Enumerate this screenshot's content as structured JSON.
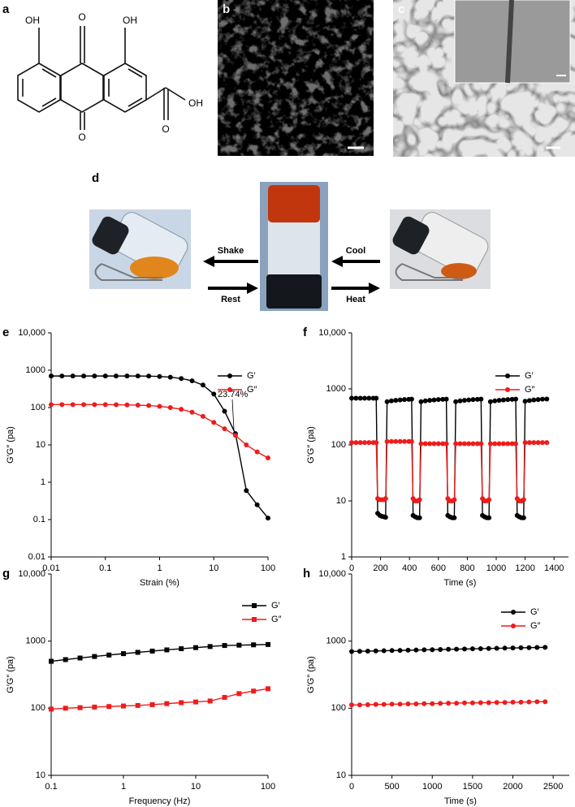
{
  "panels": {
    "a": {
      "label": "a",
      "atoms": [
        "OH",
        "O",
        "OH",
        "O",
        "O",
        "OH"
      ]
    },
    "b": {
      "label": "b"
    },
    "c": {
      "label": "c"
    },
    "d": {
      "label": "d",
      "actions": [
        "Shake",
        "Rest",
        "Cool",
        "Heat"
      ]
    }
  },
  "chart_data": [
    {
      "type": "line",
      "label": "e",
      "xlabel": "Strain (%)",
      "ylabel": "G′G″ (pa)",
      "xscale": "log",
      "yscale": "log",
      "marker": "circle",
      "legend": "upper right",
      "xlim": [
        0.01,
        100
      ],
      "ylim": [
        0.01,
        10000
      ],
      "xticks": [
        0.01,
        0.1,
        1,
        10,
        100
      ],
      "yticks": [
        0.01,
        0.1,
        1,
        10,
        100,
        1000,
        {
          "value": 10000,
          "label": "10,000"
        }
      ],
      "annotations": [
        "23.74%"
      ],
      "x": [
        0.01,
        0.0158,
        0.0251,
        0.0398,
        0.0631,
        0.1,
        0.158,
        0.251,
        0.398,
        0.631,
        1,
        1.58,
        2.51,
        3.98,
        6.31,
        10,
        15.8,
        25.1,
        39.8,
        63.1,
        100
      ],
      "series": [
        {
          "name": "G′",
          "color": "#000000",
          "values": [
            700,
            700,
            700,
            700,
            700,
            700,
            700,
            700,
            700,
            695,
            680,
            650,
            600,
            520,
            400,
            230,
            80,
            20,
            0.6,
            0.25,
            0.11
          ]
        },
        {
          "name": "G″",
          "color": "#ee1c1c",
          "values": [
            120,
            120,
            120,
            120,
            120,
            120,
            119,
            118,
            116,
            113,
            108,
            100,
            90,
            75,
            58,
            40,
            27,
            18,
            10,
            6.5,
            4.5
          ]
        }
      ]
    },
    {
      "type": "line",
      "label": "f",
      "xlabel": "Time (s)",
      "ylabel": "G′G″ (pa)",
      "xscale": "linear",
      "yscale": "log",
      "marker": "circle",
      "legend": "upper right",
      "xlim": [
        0,
        1500
      ],
      "ylim": [
        1,
        10000
      ],
      "xticks": [
        0,
        200,
        400,
        600,
        800,
        1000,
        1200,
        1400
      ],
      "yticks": [
        1,
        10,
        100,
        1000,
        {
          "value": 10000,
          "label": "10,000"
        }
      ],
      "x": [
        0,
        30,
        60,
        90,
        120,
        150,
        170,
        180,
        195,
        210,
        225,
        235,
        245,
        275,
        305,
        335,
        365,
        395,
        415,
        425,
        440,
        455,
        470,
        480,
        510,
        540,
        570,
        600,
        630,
        655,
        665,
        680,
        695,
        710,
        720,
        750,
        780,
        810,
        840,
        870,
        895,
        905,
        920,
        935,
        950,
        960,
        990,
        1020,
        1050,
        1080,
        1110,
        1135,
        1145,
        1160,
        1175,
        1190,
        1200,
        1230,
        1260,
        1290,
        1320,
        1350
      ],
      "series": [
        {
          "name": "G′",
          "color": "#000000",
          "values": [
            680,
            680,
            680,
            680,
            680,
            680,
            680,
            6,
            5.5,
            5.3,
            5.2,
            5.1,
            590,
            610,
            625,
            635,
            645,
            650,
            655,
            5.5,
            5.2,
            5,
            5,
            590,
            610,
            625,
            635,
            645,
            650,
            655,
            5.5,
            5.2,
            5,
            5,
            590,
            610,
            625,
            635,
            645,
            650,
            655,
            5.5,
            5.2,
            5,
            5,
            590,
            610,
            625,
            635,
            645,
            650,
            655,
            5.5,
            5.2,
            5,
            5,
            600,
            620,
            635,
            645,
            655,
            660
          ]
        },
        {
          "name": "G″",
          "color": "#ee1c1c",
          "values": [
            110,
            110,
            110,
            110,
            110,
            110,
            110,
            11,
            10.5,
            10.5,
            10.5,
            11,
            115,
            115,
            115,
            115,
            115,
            115,
            115,
            11,
            10,
            10,
            10.5,
            105,
            105,
            105,
            105,
            105,
            105,
            105,
            11,
            10,
            10,
            10.5,
            105,
            105,
            105,
            105,
            105,
            105,
            105,
            11,
            10,
            10,
            10.5,
            105,
            105,
            105,
            105,
            105,
            105,
            105,
            11,
            10,
            10,
            10.5,
            110,
            110,
            110,
            110,
            110,
            110
          ]
        }
      ]
    },
    {
      "type": "line",
      "label": "g",
      "xlabel": "Frequency (Hz)",
      "ylabel": "G′G″ (pa)",
      "xscale": "log",
      "yscale": "log",
      "marker": "square",
      "legend": "upper right",
      "xlim": [
        0.1,
        100
      ],
      "ylim": [
        10,
        10000
      ],
      "xticks": [
        0.1,
        1,
        10,
        100
      ],
      "yticks": [
        10,
        100,
        1000,
        {
          "value": 10000,
          "label": "10,000"
        }
      ],
      "x": [
        0.1,
        0.158,
        0.251,
        0.398,
        0.631,
        1,
        1.58,
        2.51,
        3.98,
        6.31,
        10,
        15.8,
        25.1,
        39.8,
        63.1,
        100
      ],
      "series": [
        {
          "name": "G′",
          "color": "#000000",
          "values": [
            500,
            530,
            560,
            590,
            620,
            650,
            680,
            710,
            740,
            770,
            800,
            830,
            860,
            870,
            880,
            890
          ]
        },
        {
          "name": "G″",
          "color": "#ee1c1c",
          "values": [
            97,
            100,
            102,
            104,
            106,
            108,
            110,
            113,
            117,
            121,
            124,
            128,
            145,
            165,
            180,
            195
          ]
        }
      ]
    },
    {
      "type": "line",
      "label": "h",
      "xlabel": "Time (s)",
      "ylabel": "G′G″ (pa)",
      "xscale": "linear",
      "yscale": "log",
      "marker": "circle",
      "legend": "upper right",
      "xlim": [
        0,
        2700
      ],
      "ylim": [
        10,
        10000
      ],
      "xticks": [
        0,
        500,
        1000,
        1500,
        2000,
        2500
      ],
      "yticks": [
        10,
        100,
        1000,
        {
          "value": 10000,
          "label": "10,000"
        }
      ],
      "x": [
        0,
        100,
        200,
        300,
        400,
        500,
        600,
        700,
        800,
        900,
        1000,
        1100,
        1200,
        1300,
        1400,
        1500,
        1600,
        1700,
        1800,
        1900,
        2000,
        2100,
        2200,
        2300,
        2400
      ],
      "series": [
        {
          "name": "G′",
          "color": "#000000",
          "values": [
            700,
            705,
            709,
            714,
            718,
            723,
            727,
            732,
            736,
            741,
            745,
            750,
            754,
            759,
            763,
            768,
            772,
            777,
            781,
            786,
            790,
            795,
            799,
            804,
            808
          ]
        },
        {
          "name": "G″",
          "color": "#ee1c1c",
          "values": [
            112,
            112,
            113,
            114,
            114,
            115,
            115,
            116,
            116,
            117,
            117,
            118,
            119,
            119,
            120,
            120,
            121,
            121,
            122,
            122,
            123,
            123,
            124,
            125,
            125
          ]
        }
      ]
    }
  ]
}
